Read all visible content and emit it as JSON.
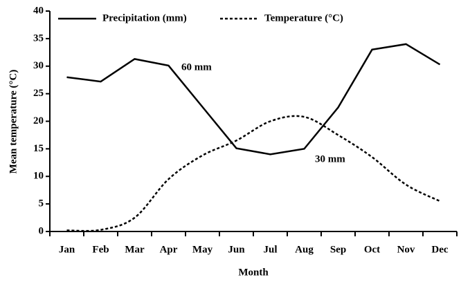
{
  "chart_data": {
    "type": "line",
    "x_label": "Month",
    "y_label": "Mean temperature (°C)",
    "categories": [
      "Jan",
      "Feb",
      "Mar",
      "Apr",
      "May",
      "Jun",
      "Jul",
      "Aug",
      "Sep",
      "Oct",
      "Nov",
      "Dec"
    ],
    "series": [
      {
        "name": "Precipitation (mm)",
        "color": "#000000",
        "dash": false,
        "values": [
          28,
          27.2,
          31.3,
          30.1,
          22.6,
          15.1,
          14,
          15,
          22.5,
          33,
          34,
          30.3
        ]
      },
      {
        "name": "Temperature (°C)",
        "color": "#000000",
        "dash": true,
        "values": [
          0.2,
          0.3,
          2.5,
          9.5,
          13.8,
          16.5,
          20,
          20.8,
          17.5,
          13.5,
          8.5,
          5.5
        ]
      }
    ],
    "annotations": [
      "60 mm",
      "30 mm"
    ],
    "ylim": [
      0,
      40
    ],
    "yticks": [
      0,
      5,
      10,
      15,
      20,
      25,
      30,
      35,
      40
    ],
    "legend": "top"
  }
}
